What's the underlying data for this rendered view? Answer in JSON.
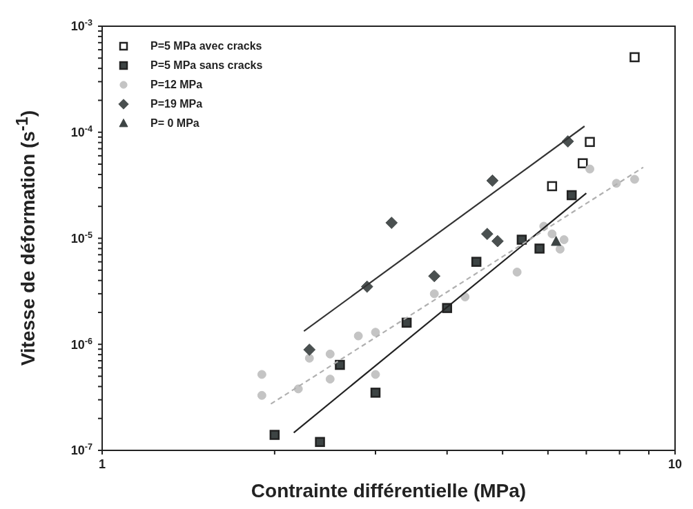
{
  "chart_data": {
    "type": "scatter",
    "xlabel": "Contrainte différentielle (MPa)",
    "ylabel": "Vitesse de déformation (s$^{-1}$)",
    "log": "xy",
    "legend": "top left",
    "xlim": [
      1,
      10
    ],
    "ylim": [
      1e-07,
      0.001
    ],
    "xticks": [
      1,
      {
        "value": 2,
        "label": null
      },
      {
        "value": 3,
        "label": null
      },
      {
        "value": 4,
        "label": null
      },
      {
        "value": 5,
        "label": null
      },
      {
        "value": 6,
        "label": null
      },
      {
        "value": 7,
        "label": null
      },
      {
        "value": 8,
        "label": null
      },
      {
        "value": 9,
        "label": null
      },
      10
    ],
    "yticks": [
      {
        "value": 1e-07,
        "label": "10$^{-7}$"
      },
      {
        "value": 2e-07,
        "label": null
      },
      {
        "value": 3e-07,
        "label": null
      },
      {
        "value": 4e-07,
        "label": null
      },
      {
        "value": 5e-07,
        "label": null
      },
      {
        "value": 6e-07,
        "label": null
      },
      {
        "value": 7e-07,
        "label": null
      },
      {
        "value": 8e-07,
        "label": null
      },
      {
        "value": 9e-07,
        "label": null
      },
      {
        "value": 1e-06,
        "label": "10$^{-6}$"
      },
      {
        "value": 2e-06,
        "label": null
      },
      {
        "value": 3e-06,
        "label": null
      },
      {
        "value": 4e-06,
        "label": null
      },
      {
        "value": 5e-06,
        "label": null
      },
      {
        "value": 6e-06,
        "label": null
      },
      {
        "value": 7e-06,
        "label": null
      },
      {
        "value": 8e-06,
        "label": null
      },
      {
        "value": 9e-06,
        "label": null
      },
      {
        "value": 1e-05,
        "label": "10$^{-5}$"
      },
      {
        "value": 2e-05,
        "label": null
      },
      {
        "value": 3e-05,
        "label": null
      },
      {
        "value": 4e-05,
        "label": null
      },
      {
        "value": 5e-05,
        "label": null
      },
      {
        "value": 6e-05,
        "label": null
      },
      {
        "value": 7e-05,
        "label": null
      },
      {
        "value": 8e-05,
        "label": null
      },
      {
        "value": 9e-05,
        "label": null
      },
      {
        "value": 0.0001,
        "label": "10$^{-4}$"
      },
      {
        "value": 0.0002,
        "label": null
      },
      {
        "value": 0.0003,
        "label": null
      },
      {
        "value": 0.0004,
        "label": null
      },
      {
        "value": 0.0005,
        "label": null
      },
      {
        "value": 0.0006,
        "label": null
      },
      {
        "value": 0.0007,
        "label": null
      },
      {
        "value": 0.0008,
        "label": null
      },
      {
        "value": 0.0009,
        "label": null
      },
      {
        "value": 0.001,
        "label": "10$^{-3}$"
      }
    ],
    "series": [
      {
        "name": "P=5 MPa avec cracks",
        "marker": "square",
        "color": "#ffffff",
        "x": [
          8.5,
          7.1,
          6.9,
          6.1
        ],
        "values": [
          0.00051,
          8.1e-05,
          5.1e-05,
          3.1e-05
        ]
      },
      {
        "name": "P=5 MPa sans cracks",
        "marker": "square",
        "color": "#3d4444",
        "x": [
          6.6,
          5.4,
          5.8,
          4.5,
          4.0,
          3.4,
          2.6,
          3.0,
          2.0,
          2.4
        ],
        "values": [
          2.55e-05,
          9.7e-06,
          8e-06,
          6e-06,
          2.2e-06,
          1.6e-06,
          6.4e-07,
          3.5e-07,
          1.4e-07,
          1.2e-07
        ]
      },
      {
        "name": "P=12 MPa",
        "marker": "circle",
        "color": "#c4c4c4",
        "x": [
          7.1,
          7.9,
          8.5,
          5.9,
          6.1,
          6.4,
          6.3,
          5.3,
          4.3,
          3.8,
          3.0,
          2.8,
          2.5,
          2.3,
          3.0,
          2.5,
          2.2,
          1.9,
          1.9
        ],
        "values": [
          4.5e-05,
          3.3e-05,
          3.6e-05,
          1.3e-05,
          1.1e-05,
          9.7e-06,
          7.9e-06,
          4.8e-06,
          2.8e-06,
          3e-06,
          1.3e-06,
          1.2e-06,
          8.1e-07,
          7.4e-07,
          5.2e-07,
          4.7e-07,
          3.8e-07,
          5.2e-07,
          3.3e-07
        ]
      },
      {
        "name": "P=19 MPa",
        "marker": "diamond",
        "color": "#4a5050",
        "x": [
          6.5,
          4.8,
          3.2,
          4.7,
          4.9,
          3.8,
          2.9,
          2.3
        ],
        "values": [
          8.2e-05,
          3.5e-05,
          1.4e-05,
          1.1e-05,
          9.4e-06,
          4.4e-06,
          3.5e-06,
          8.9e-07
        ]
      },
      {
        "name": "P= 0 MPa",
        "marker": "triangle",
        "color": "#3d4444",
        "x": [
          6.2
        ],
        "values": [
          9.3e-06
        ]
      },
      {
        "type": "line",
        "color": "#333333",
        "line_style": "solid",
        "x": [
          2.25,
          6.95
        ],
        "values": [
          1.33e-06,
          0.000114
        ]
      },
      {
        "type": "line",
        "color": "#222222",
        "line_style": "solid",
        "x": [
          2.16,
          7.0
        ],
        "values": [
          1.47e-07,
          2.66e-05
        ]
      },
      {
        "type": "line",
        "color": "#b0b0b0",
        "line_style": "dashed",
        "x": [
          1.97,
          8.8
        ],
        "values": [
          2.74e-07,
          4.67e-05
        ]
      }
    ]
  }
}
